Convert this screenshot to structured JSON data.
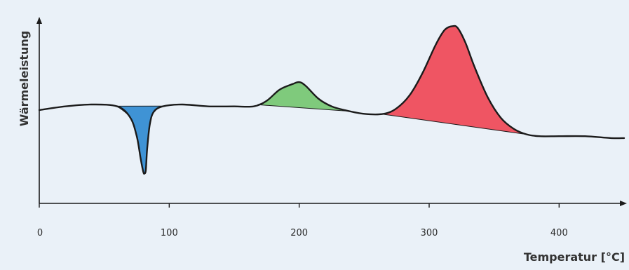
{
  "chart_data": {
    "type": "area",
    "xlabel": "Temperatur [°C]",
    "ylabel": "Wärmeleistung",
    "xlim": [
      0,
      450
    ],
    "ylim": [
      0,
      1
    ],
    "x_ticks": [
      0,
      100,
      200,
      300,
      400
    ],
    "y_tick_labels": false,
    "grid": false,
    "legend": "none",
    "curve": {
      "x": [
        0,
        20,
        40,
        60,
        70,
        75,
        78,
        80,
        81,
        82,
        83,
        85,
        88,
        95,
        110,
        130,
        150,
        165,
        175,
        185,
        195,
        200,
        205,
        215,
        225,
        235,
        250,
        265,
        275,
        285,
        295,
        305,
        312,
        318,
        322,
        328,
        335,
        345,
        355,
        365,
        375,
        385,
        400,
        420,
        440,
        450
      ],
      "y": [
        0.5,
        0.52,
        0.53,
        0.52,
        0.46,
        0.36,
        0.24,
        0.17,
        0.16,
        0.18,
        0.29,
        0.42,
        0.49,
        0.52,
        0.53,
        0.52,
        0.52,
        0.52,
        0.55,
        0.61,
        0.64,
        0.65,
        0.63,
        0.56,
        0.52,
        0.5,
        0.48,
        0.48,
        0.51,
        0.58,
        0.7,
        0.85,
        0.93,
        0.95,
        0.94,
        0.86,
        0.73,
        0.57,
        0.46,
        0.4,
        0.37,
        0.36,
        0.36,
        0.36,
        0.35,
        0.35
      ]
    },
    "peaks": [
      {
        "kind": "endothermic",
        "x_start": 58,
        "x_end": 97,
        "color": "#3f93d5"
      },
      {
        "kind": "exothermic",
        "x_start": 168,
        "x_end": 240,
        "color": "#7fca7c"
      },
      {
        "kind": "exothermic",
        "x_start": 262,
        "x_end": 375,
        "color": "#ef5563"
      }
    ]
  }
}
